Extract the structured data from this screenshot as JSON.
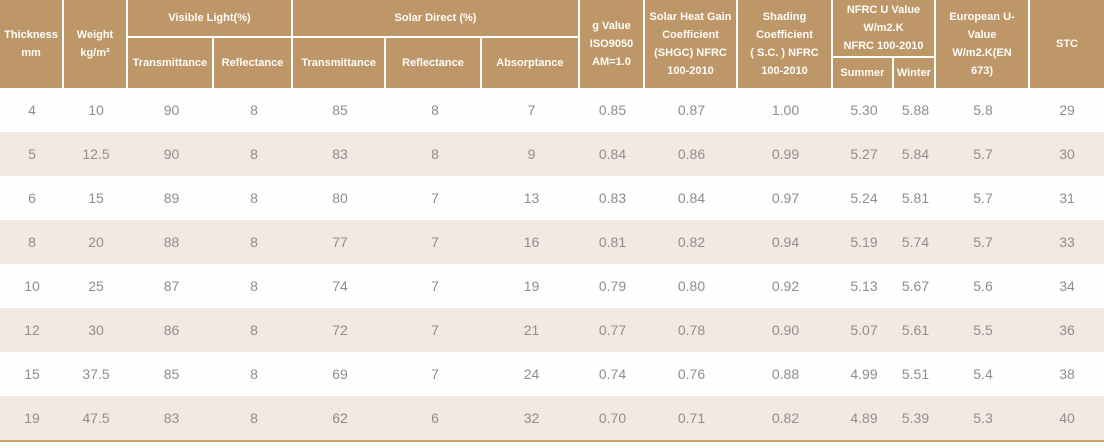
{
  "colors": {
    "header_bg": "#bd9768",
    "header_text": "#fdfcfa",
    "row_bg": "#fefefe",
    "row_alt_bg": "#f3e9e2",
    "data_text": "#8e8e8e",
    "divider_white": "#ffffff",
    "bottom_line": "#c9a464"
  },
  "table": {
    "header": {
      "thickness": "Thickness\nmm",
      "weight": "Weight\nkg/m²",
      "visible_light": "Visible Light(%)",
      "vl_transmittance": "Transmittance",
      "vl_reflectance": "Reflectance",
      "solar_direct": "Solar Direct (%)",
      "sd_transmittance": "Transmittance",
      "sd_reflectance": "Reflectance",
      "sd_absorptance": "Absorptance",
      "g_value": "g Value\nISO9050\nAM=1.0",
      "shgc": "Solar Heat Gain\nCoefficient\n(SHGC) NFRC\n100-2010",
      "shading": "Shading\nCoefficient\n( S.C. ) NFRC\n100-2010",
      "nfrc_u": "NFRC U Value\nW/m2.K\nNFRC 100-2010",
      "summer": "Summer",
      "winter": "Winter",
      "european_u": "European U-\nValue\nW/m2.K(EN\n673)",
      "stc": "STC"
    },
    "rows": [
      [
        "4",
        "10",
        "90",
        "8",
        "85",
        "8",
        "7",
        "0.85",
        "0.87",
        "1.00",
        "5.30",
        "5.88",
        "5.8",
        "29"
      ],
      [
        "5",
        "12.5",
        "90",
        "8",
        "83",
        "8",
        "9",
        "0.84",
        "0.86",
        "0.99",
        "5.27",
        "5.84",
        "5.7",
        "30"
      ],
      [
        "6",
        "15",
        "89",
        "8",
        "80",
        "7",
        "13",
        "0.83",
        "0.84",
        "0.97",
        "5.24",
        "5.81",
        "5.7",
        "31"
      ],
      [
        "8",
        "20",
        "88",
        "8",
        "77",
        "7",
        "16",
        "0.81",
        "0.82",
        "0.94",
        "5.19",
        "5.74",
        "5.7",
        "33"
      ],
      [
        "10",
        "25",
        "87",
        "8",
        "74",
        "7",
        "19",
        "0.79",
        "0.80",
        "0.92",
        "5.13",
        "5.67",
        "5.6",
        "34"
      ],
      [
        "12",
        "30",
        "86",
        "8",
        "72",
        "7",
        "21",
        "0.77",
        "0.78",
        "0.90",
        "5.07",
        "5.61",
        "5.5",
        "36"
      ],
      [
        "15",
        "37.5",
        "85",
        "8",
        "69",
        "7",
        "24",
        "0.74",
        "0.76",
        "0.88",
        "4.99",
        "5.51",
        "5.4",
        "38"
      ],
      [
        "19",
        "47.5",
        "83",
        "8",
        "62",
        "6",
        "32",
        "0.70",
        "0.71",
        "0.82",
        "4.89",
        "5.39",
        "5.3",
        "40"
      ]
    ]
  },
  "chart_data": {
    "type": "table",
    "title": "",
    "column_groups": [
      {
        "label": "Thickness mm"
      },
      {
        "label": "Weight kg/m²"
      },
      {
        "label": "Visible Light(%)",
        "children": [
          "Transmittance",
          "Reflectance"
        ]
      },
      {
        "label": "Solar Direct (%)",
        "children": [
          "Transmittance",
          "Reflectance",
          "Absorptance"
        ]
      },
      {
        "label": "g Value ISO9050 AM=1.0"
      },
      {
        "label": "Solar Heat Gain Coefficient (SHGC) NFRC 100-2010"
      },
      {
        "label": "Shading Coefficient ( S.C. ) NFRC 100-2010"
      },
      {
        "label": "NFRC U Value W/m2.K NFRC 100-2010",
        "children": [
          "Summer",
          "Winter"
        ]
      },
      {
        "label": "European U-Value W/m2.K(EN 673)"
      },
      {
        "label": "STC"
      }
    ],
    "flat_columns": [
      "Thickness mm",
      "Weight kg/m²",
      "Visible Light Transmittance %",
      "Visible Light Reflectance %",
      "Solar Direct Transmittance %",
      "Solar Direct Reflectance %",
      "Solar Direct Absorptance %",
      "g Value ISO9050 AM=1.0",
      "SHGC NFRC 100-2010",
      "Shading Coefficient S.C. NFRC 100-2010",
      "NFRC U Value Summer",
      "NFRC U Value Winter",
      "European U-Value W/m2.K EN 673",
      "STC"
    ],
    "rows": [
      [
        4,
        10,
        90,
        8,
        85,
        8,
        7,
        0.85,
        0.87,
        1.0,
        5.3,
        5.88,
        5.8,
        29
      ],
      [
        5,
        12.5,
        90,
        8,
        83,
        8,
        9,
        0.84,
        0.86,
        0.99,
        5.27,
        5.84,
        5.7,
        30
      ],
      [
        6,
        15,
        89,
        8,
        80,
        7,
        13,
        0.83,
        0.84,
        0.97,
        5.24,
        5.81,
        5.7,
        31
      ],
      [
        8,
        20,
        88,
        8,
        77,
        7,
        16,
        0.81,
        0.82,
        0.94,
        5.19,
        5.74,
        5.7,
        33
      ],
      [
        10,
        25,
        87,
        8,
        74,
        7,
        19,
        0.79,
        0.8,
        0.92,
        5.13,
        5.67,
        5.6,
        34
      ],
      [
        12,
        30,
        86,
        8,
        72,
        7,
        21,
        0.77,
        0.78,
        0.9,
        5.07,
        5.61,
        5.5,
        36
      ],
      [
        15,
        37.5,
        85,
        8,
        69,
        7,
        24,
        0.74,
        0.76,
        0.88,
        4.99,
        5.51,
        5.4,
        38
      ],
      [
        19,
        47.5,
        83,
        8,
        62,
        6,
        32,
        0.7,
        0.71,
        0.82,
        4.89,
        5.39,
        5.3,
        40
      ]
    ]
  }
}
